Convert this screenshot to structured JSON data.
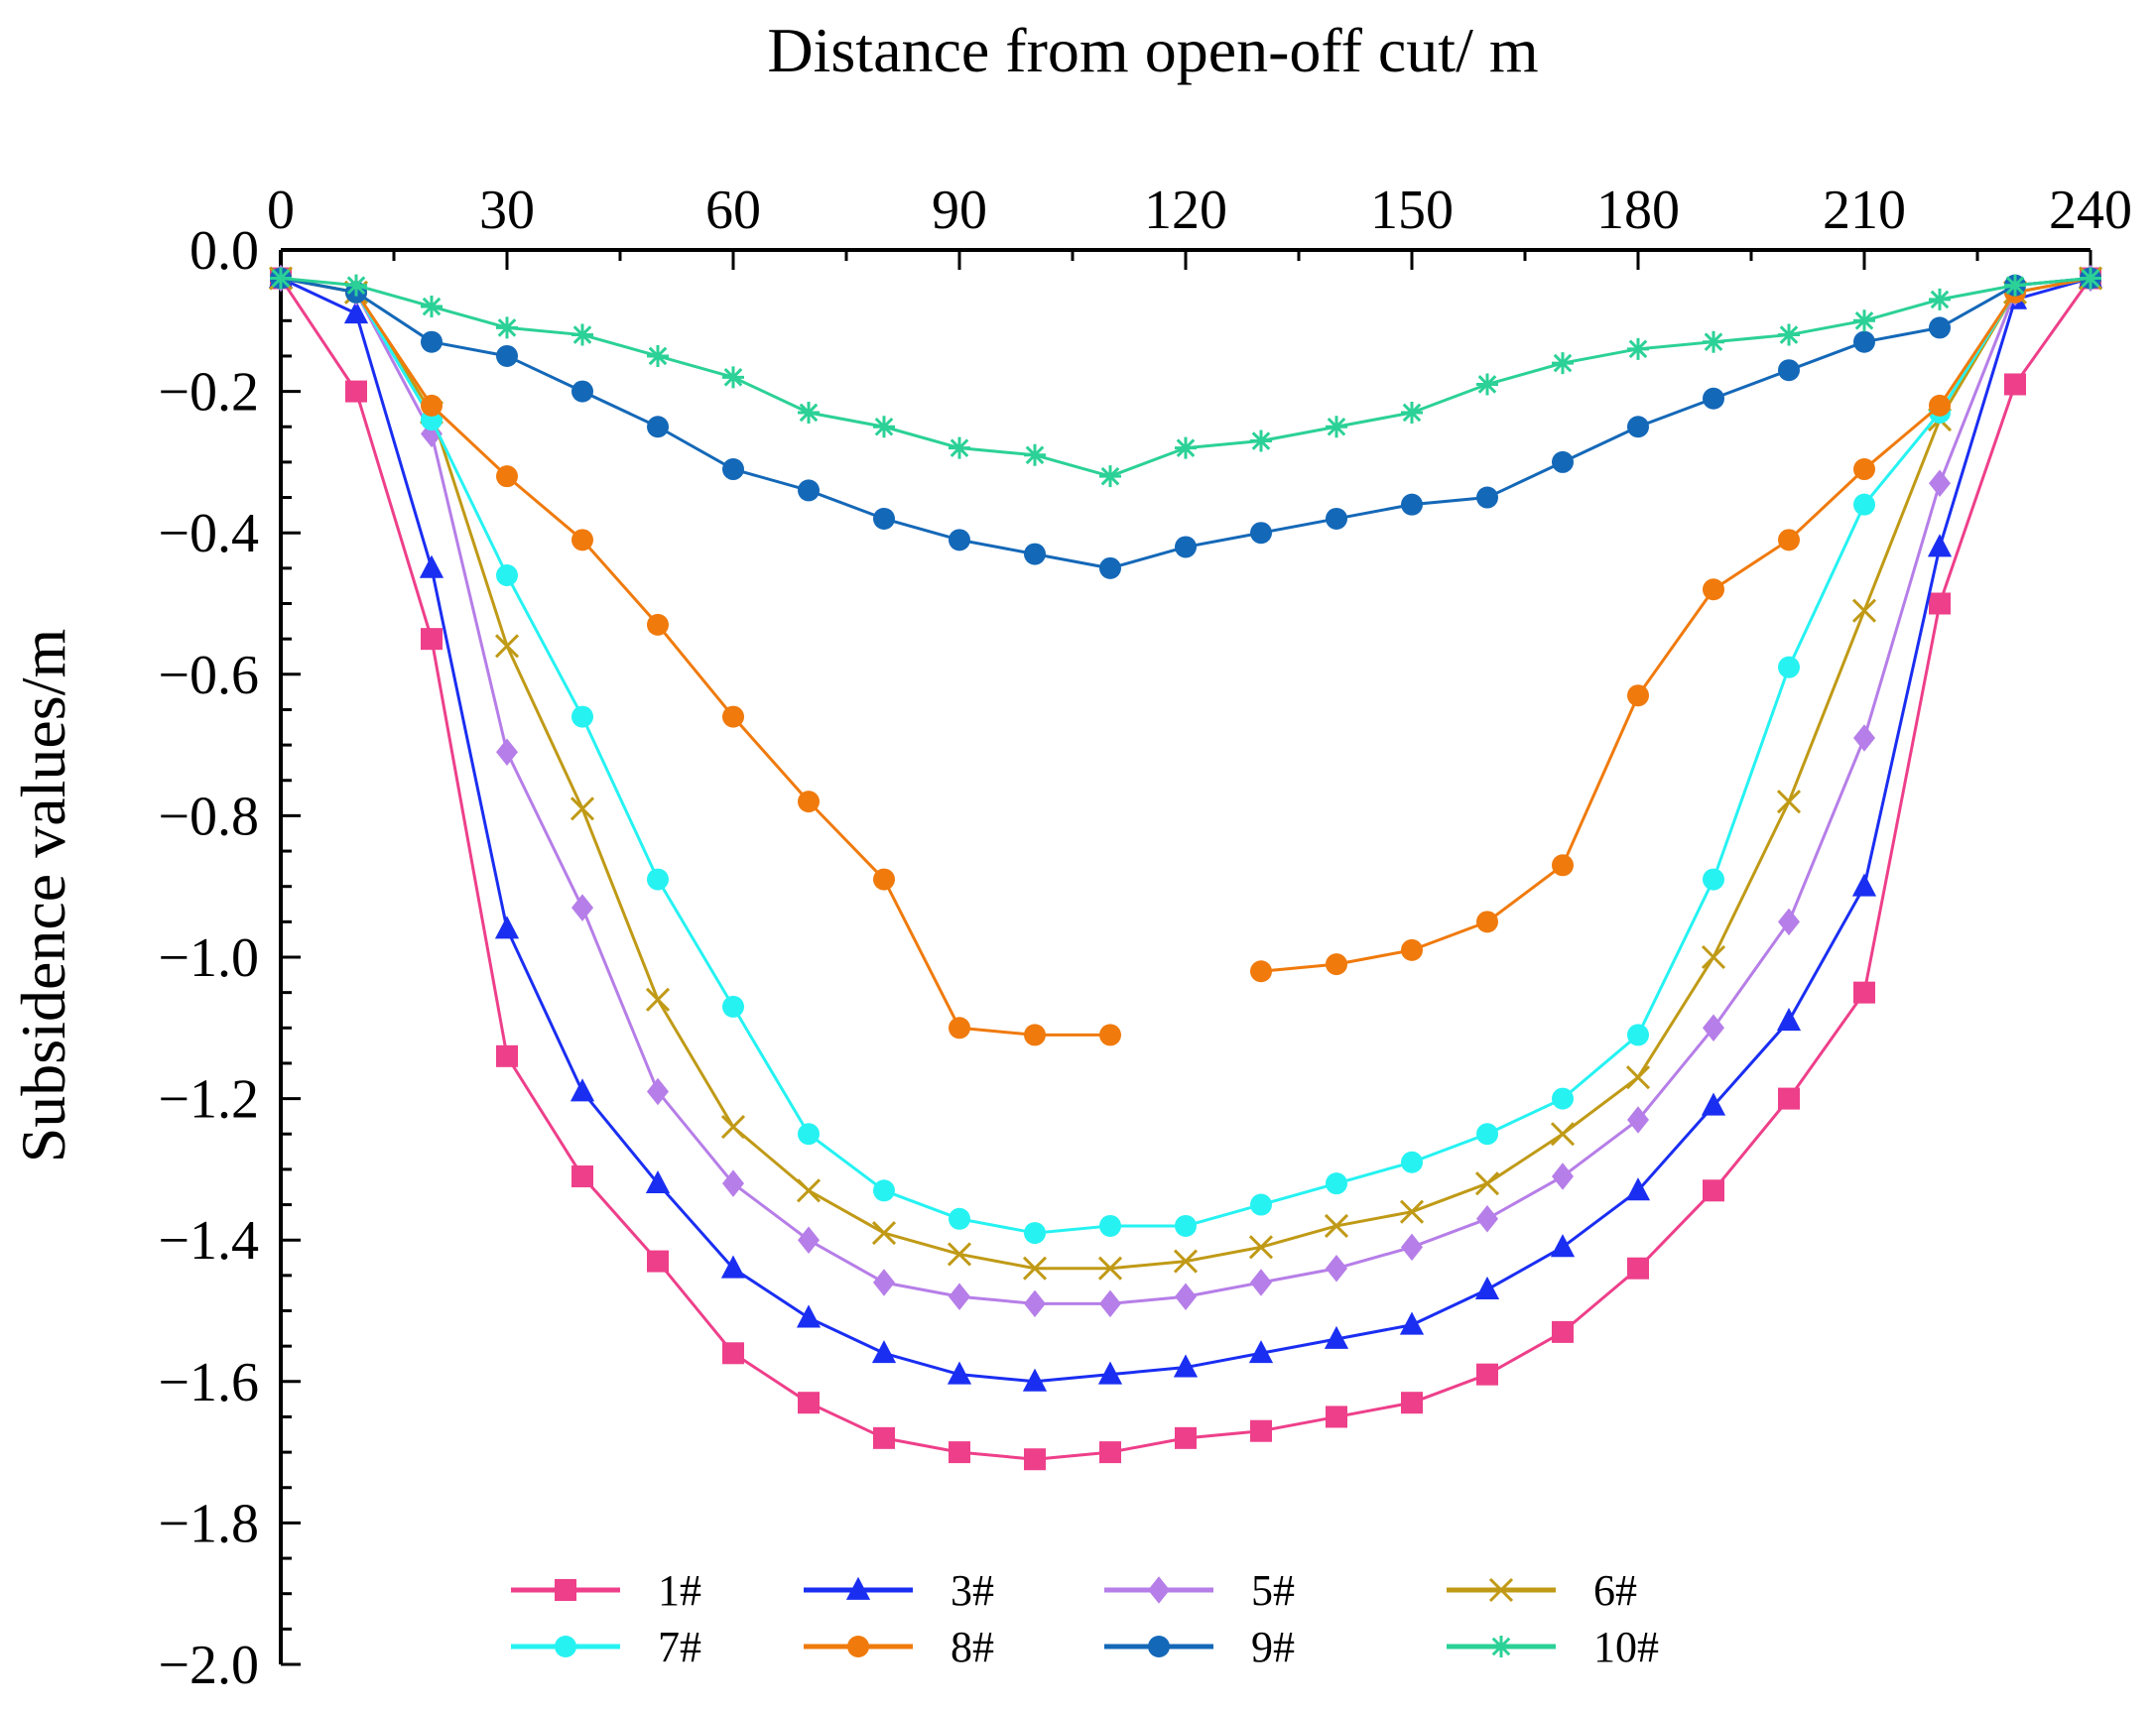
{
  "chart_data": {
    "type": "line",
    "title": "",
    "xlabel": "Distance from open-off cut/ m",
    "ylabel": "Subsidence values/m",
    "xlim": [
      0,
      240
    ],
    "ylim": [
      -2.0,
      0.0
    ],
    "x_ticks": [
      0,
      30,
      60,
      90,
      120,
      150,
      180,
      210,
      240
    ],
    "x_tick_labels": [
      "0",
      "30",
      "60",
      "90",
      "120",
      "150",
      "180",
      "210",
      "240"
    ],
    "y_ticks": [
      0.0,
      -0.2,
      -0.4,
      -0.6,
      -0.8,
      -1.0,
      -1.2,
      -1.4,
      -1.6,
      -1.8,
      -2.0
    ],
    "y_tick_labels": [
      "0.0",
      "−0.2",
      "−0.4",
      "−0.6",
      "−0.8",
      "−1.0",
      "−1.2",
      "−1.4",
      "−1.6",
      "−1.8",
      "−2.0"
    ],
    "x_axis_position": "top",
    "grid": false,
    "legend_position": "bottom-center",
    "series": [
      {
        "name": "1#",
        "color": "#ee3f8a",
        "marker": "square",
        "x": [
          0,
          10,
          20,
          30,
          40,
          50,
          60,
          70,
          80,
          90,
          100,
          110,
          120,
          130,
          140,
          150,
          160,
          170,
          180,
          190,
          200,
          210,
          220,
          230,
          240
        ],
        "values": [
          -0.04,
          -0.2,
          -0.55,
          -1.14,
          -1.31,
          -1.43,
          -1.56,
          -1.63,
          -1.68,
          -1.7,
          -1.71,
          -1.7,
          -1.68,
          -1.67,
          -1.65,
          -1.63,
          -1.59,
          -1.53,
          -1.44,
          -1.33,
          -1.2,
          -1.05,
          -0.5,
          -0.19,
          -0.04
        ]
      },
      {
        "name": "3#",
        "color": "#1a2ef2",
        "marker": "triangle",
        "x": [
          0,
          10,
          20,
          30,
          40,
          50,
          60,
          70,
          80,
          90,
          100,
          110,
          120,
          130,
          140,
          150,
          160,
          170,
          180,
          190,
          200,
          210,
          220,
          230,
          240
        ],
        "values": [
          -0.04,
          -0.09,
          -0.45,
          -0.96,
          -1.19,
          -1.32,
          -1.44,
          -1.51,
          -1.56,
          -1.59,
          -1.6,
          -1.59,
          -1.58,
          -1.56,
          -1.54,
          -1.52,
          -1.47,
          -1.41,
          -1.33,
          -1.21,
          -1.09,
          -0.9,
          -0.42,
          -0.07,
          -0.04
        ]
      },
      {
        "name": "5#",
        "color": "#b67ee8",
        "marker": "diamond",
        "x": [
          0,
          10,
          20,
          30,
          40,
          50,
          60,
          70,
          80,
          90,
          100,
          110,
          120,
          130,
          140,
          150,
          160,
          170,
          180,
          190,
          200,
          210,
          220,
          230,
          240
        ],
        "values": [
          -0.04,
          -0.06,
          -0.26,
          -0.71,
          -0.93,
          -1.19,
          -1.32,
          -1.4,
          -1.46,
          -1.48,
          -1.49,
          -1.49,
          -1.48,
          -1.46,
          -1.44,
          -1.41,
          -1.37,
          -1.31,
          -1.23,
          -1.1,
          -0.95,
          -0.69,
          -0.33,
          -0.06,
          -0.04
        ]
      },
      {
        "name": "6#",
        "color": "#c09a16",
        "marker": "x",
        "x": [
          0,
          10,
          20,
          30,
          40,
          50,
          60,
          70,
          80,
          90,
          100,
          110,
          120,
          130,
          140,
          150,
          160,
          170,
          180,
          190,
          200,
          210,
          220,
          230,
          240
        ],
        "values": [
          -0.04,
          -0.06,
          -0.23,
          -0.56,
          -0.79,
          -1.06,
          -1.24,
          -1.33,
          -1.39,
          -1.42,
          -1.44,
          -1.44,
          -1.43,
          -1.41,
          -1.38,
          -1.36,
          -1.32,
          -1.25,
          -1.17,
          -1.0,
          -0.78,
          -0.51,
          -0.24,
          -0.06,
          -0.04
        ]
      },
      {
        "name": "7#",
        "color": "#26f2f2",
        "marker": "circle",
        "x": [
          0,
          10,
          20,
          30,
          40,
          50,
          60,
          70,
          80,
          90,
          100,
          110,
          120,
          130,
          140,
          150,
          160,
          170,
          180,
          190,
          200,
          210,
          220,
          230,
          240
        ],
        "values": [
          -0.04,
          -0.06,
          -0.24,
          -0.46,
          -0.66,
          -0.89,
          -1.07,
          -1.25,
          -1.33,
          -1.37,
          -1.39,
          -1.38,
          -1.38,
          -1.35,
          -1.32,
          -1.29,
          -1.25,
          -1.2,
          -1.11,
          -0.89,
          -0.59,
          -0.36,
          -0.23,
          -0.06,
          -0.04
        ]
      },
      {
        "name": "8#",
        "color": "#f07a0c",
        "marker": "circle",
        "x": [
          0,
          10,
          20,
          30,
          40,
          50,
          60,
          70,
          80,
          90,
          100,
          110,
          null,
          130,
          140,
          150,
          160,
          170,
          180,
          190,
          200,
          210,
          220,
          230,
          240
        ],
        "values": [
          -0.04,
          -0.06,
          -0.22,
          -0.32,
          -0.41,
          -0.53,
          -0.66,
          -0.78,
          -0.89,
          -1.1,
          -1.11,
          -1.11,
          null,
          -1.02,
          -1.01,
          -0.99,
          -0.95,
          -0.87,
          -0.63,
          -0.48,
          -0.41,
          -0.31,
          -0.22,
          -0.06,
          -0.04
        ]
      },
      {
        "name": "9#",
        "color": "#1468b8",
        "marker": "circle",
        "x": [
          0,
          10,
          20,
          30,
          40,
          50,
          60,
          70,
          80,
          90,
          100,
          110,
          120,
          130,
          140,
          150,
          160,
          170,
          180,
          190,
          200,
          210,
          220,
          230,
          240
        ],
        "values": [
          -0.04,
          -0.06,
          -0.13,
          -0.15,
          -0.2,
          -0.25,
          -0.31,
          -0.34,
          -0.38,
          -0.41,
          -0.43,
          -0.45,
          -0.42,
          -0.4,
          -0.38,
          -0.36,
          -0.35,
          -0.3,
          -0.25,
          -0.21,
          -0.17,
          -0.13,
          -0.11,
          -0.05,
          -0.04
        ]
      },
      {
        "name": "10#",
        "color": "#2bd196",
        "marker": "star",
        "x": [
          0,
          10,
          20,
          30,
          40,
          50,
          60,
          70,
          80,
          90,
          100,
          110,
          120,
          130,
          140,
          150,
          160,
          170,
          180,
          190,
          200,
          210,
          220,
          230,
          240
        ],
        "values": [
          -0.04,
          -0.05,
          -0.08,
          -0.11,
          -0.12,
          -0.15,
          -0.18,
          -0.23,
          -0.25,
          -0.28,
          -0.29,
          -0.32,
          -0.28,
          -0.27,
          -0.25,
          -0.23,
          -0.19,
          -0.16,
          -0.14,
          -0.13,
          -0.12,
          -0.1,
          -0.07,
          -0.05,
          -0.04
        ]
      }
    ]
  }
}
